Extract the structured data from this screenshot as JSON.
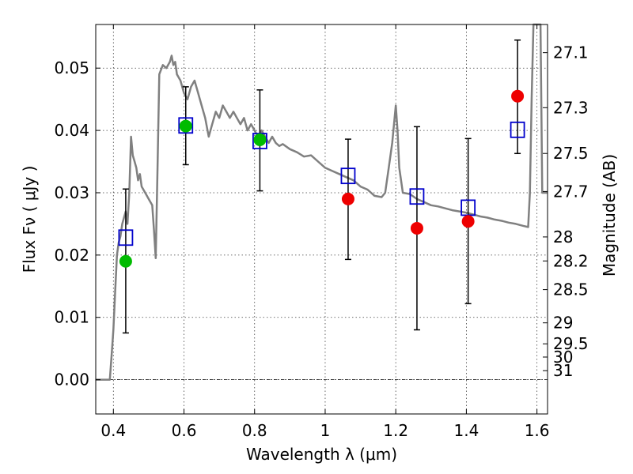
{
  "chart_data": {
    "type": "scatter",
    "title": "",
    "xlabel": "Wavelength  λ (μm)",
    "ylabel": "Flux  Fν  ( μJy )",
    "ylabel_right": "Magnitude (AB)",
    "xlim": [
      0.35,
      1.63
    ],
    "ylim": [
      -0.0055,
      0.057
    ],
    "grid": true,
    "xticks": [
      {
        "value": 0.4,
        "label": "0.4"
      },
      {
        "value": 0.6,
        "label": "0.6"
      },
      {
        "value": 0.8,
        "label": "0.8"
      },
      {
        "value": 1.0,
        "label": "1"
      },
      {
        "value": 1.2,
        "label": "1.2"
      },
      {
        "value": 1.4,
        "label": "1.4"
      },
      {
        "value": 1.6,
        "label": "1.6"
      }
    ],
    "yticks": [
      {
        "value": 0.0,
        "label": "0.00"
      },
      {
        "value": 0.01,
        "label": "0.01"
      },
      {
        "value": 0.02,
        "label": "0.02"
      },
      {
        "value": 0.03,
        "label": "0.03"
      },
      {
        "value": 0.04,
        "label": "0.04"
      },
      {
        "value": 0.05,
        "label": "0.05"
      }
    ],
    "right_ticks": [
      {
        "mag": 27.1,
        "label": "27.1"
      },
      {
        "mag": 27.3,
        "label": "27.3"
      },
      {
        "mag": 27.5,
        "label": "27.5"
      },
      {
        "mag": 27.7,
        "label": "27.7"
      },
      {
        "mag": 28.0,
        "label": "28"
      },
      {
        "mag": 28.2,
        "label": "28.2"
      },
      {
        "mag": 28.5,
        "label": "28.5"
      },
      {
        "mag": 29.0,
        "label": "29"
      },
      {
        "mag": 29.5,
        "label": "29.5"
      },
      {
        "mag": 30.0,
        "label": "30"
      },
      {
        "mag": 31.0,
        "label": "31"
      }
    ],
    "model_spectrum": {
      "color": "#808080",
      "points": [
        [
          0.35,
          0.0
        ],
        [
          0.39,
          0.0
        ],
        [
          0.395,
          0.004
        ],
        [
          0.4,
          0.008
        ],
        [
          0.405,
          0.014
        ],
        [
          0.41,
          0.02
        ],
        [
          0.415,
          0.022
        ],
        [
          0.42,
          0.023
        ],
        [
          0.425,
          0.025
        ],
        [
          0.43,
          0.026
        ],
        [
          0.435,
          0.027
        ],
        [
          0.44,
          0.025
        ],
        [
          0.445,
          0.03
        ],
        [
          0.45,
          0.039
        ],
        [
          0.455,
          0.036
        ],
        [
          0.46,
          0.035
        ],
        [
          0.465,
          0.034
        ],
        [
          0.47,
          0.032
        ],
        [
          0.475,
          0.033
        ],
        [
          0.48,
          0.031
        ],
        [
          0.49,
          0.03
        ],
        [
          0.5,
          0.029
        ],
        [
          0.51,
          0.028
        ],
        [
          0.515,
          0.024
        ],
        [
          0.52,
          0.0195
        ],
        [
          0.525,
          0.034
        ],
        [
          0.53,
          0.049
        ],
        [
          0.54,
          0.0505
        ],
        [
          0.55,
          0.05
        ],
        [
          0.56,
          0.051
        ],
        [
          0.565,
          0.052
        ],
        [
          0.57,
          0.0505
        ],
        [
          0.575,
          0.051
        ],
        [
          0.58,
          0.049
        ],
        [
          0.59,
          0.048
        ],
        [
          0.6,
          0.046
        ],
        [
          0.61,
          0.045
        ],
        [
          0.62,
          0.047
        ],
        [
          0.63,
          0.048
        ],
        [
          0.64,
          0.046
        ],
        [
          0.65,
          0.044
        ],
        [
          0.66,
          0.042
        ],
        [
          0.67,
          0.039
        ],
        [
          0.68,
          0.041
        ],
        [
          0.69,
          0.043
        ],
        [
          0.7,
          0.042
        ],
        [
          0.71,
          0.044
        ],
        [
          0.72,
          0.043
        ],
        [
          0.73,
          0.042
        ],
        [
          0.74,
          0.043
        ],
        [
          0.75,
          0.042
        ],
        [
          0.76,
          0.041
        ],
        [
          0.77,
          0.042
        ],
        [
          0.78,
          0.04
        ],
        [
          0.79,
          0.041
        ],
        [
          0.8,
          0.04
        ],
        [
          0.81,
          0.039
        ],
        [
          0.82,
          0.04
        ],
        [
          0.83,
          0.039
        ],
        [
          0.84,
          0.038
        ],
        [
          0.85,
          0.039
        ],
        [
          0.86,
          0.038
        ],
        [
          0.87,
          0.0375
        ],
        [
          0.88,
          0.0378
        ],
        [
          0.9,
          0.037
        ],
        [
          0.92,
          0.0365
        ],
        [
          0.94,
          0.0358
        ],
        [
          0.96,
          0.036
        ],
        [
          0.98,
          0.035
        ],
        [
          1.0,
          0.034
        ],
        [
          1.02,
          0.0335
        ],
        [
          1.04,
          0.033
        ],
        [
          1.06,
          0.0325
        ],
        [
          1.08,
          0.032
        ],
        [
          1.1,
          0.031
        ],
        [
          1.12,
          0.0305
        ],
        [
          1.14,
          0.0295
        ],
        [
          1.16,
          0.0293
        ],
        [
          1.17,
          0.03
        ],
        [
          1.18,
          0.034
        ],
        [
          1.19,
          0.038
        ],
        [
          1.2,
          0.044
        ],
        [
          1.205,
          0.04
        ],
        [
          1.21,
          0.034
        ],
        [
          1.22,
          0.03
        ],
        [
          1.24,
          0.0298
        ],
        [
          1.26,
          0.029
        ],
        [
          1.28,
          0.0285
        ],
        [
          1.3,
          0.028
        ],
        [
          1.32,
          0.0278
        ],
        [
          1.34,
          0.0275
        ],
        [
          1.36,
          0.0272
        ],
        [
          1.38,
          0.027
        ],
        [
          1.4,
          0.0268
        ],
        [
          1.42,
          0.0265
        ],
        [
          1.44,
          0.0262
        ],
        [
          1.46,
          0.026
        ],
        [
          1.48,
          0.0257
        ],
        [
          1.5,
          0.0255
        ],
        [
          1.52,
          0.0252
        ],
        [
          1.54,
          0.025
        ],
        [
          1.56,
          0.0247
        ],
        [
          1.575,
          0.0245
        ],
        [
          1.58,
          0.03
        ],
        [
          1.585,
          0.045
        ],
        [
          1.59,
          0.062
        ],
        [
          1.6,
          0.062
        ],
        [
          1.61,
          0.062
        ],
        [
          1.615,
          0.03
        ],
        [
          1.62,
          0.03
        ],
        [
          1.63,
          0.03
        ]
      ]
    },
    "series": [
      {
        "name": "",
        "marker": "open-square",
        "color": "#0000cc",
        "points": [
          {
            "x": 0.435,
            "y": 0.0228
          },
          {
            "x": 0.605,
            "y": 0.0408
          },
          {
            "x": 0.815,
            "y": 0.0383
          },
          {
            "x": 1.065,
            "y": 0.0327
          },
          {
            "x": 1.26,
            "y": 0.0294
          },
          {
            "x": 1.405,
            "y": 0.0276
          },
          {
            "x": 1.545,
            "y": 0.0401
          }
        ]
      },
      {
        "name": "",
        "marker": "circle",
        "color": "#00bb00",
        "points": [
          {
            "x": 0.435,
            "y": 0.019,
            "yerr_low": 0.0075,
            "yerr_high": 0.0306
          },
          {
            "x": 0.605,
            "y": 0.0407,
            "yerr_low": 0.0345,
            "yerr_high": 0.047
          },
          {
            "x": 0.815,
            "y": 0.0385,
            "yerr_low": 0.0303,
            "yerr_high": 0.0465
          }
        ]
      },
      {
        "name": "",
        "marker": "circle",
        "color": "#ee0000",
        "points": [
          {
            "x": 1.065,
            "y": 0.029,
            "yerr_low": 0.0193,
            "yerr_high": 0.0386
          },
          {
            "x": 1.26,
            "y": 0.0243,
            "yerr_low": 0.008,
            "yerr_high": 0.0406
          },
          {
            "x": 1.405,
            "y": 0.0254,
            "yerr_low": 0.0122,
            "yerr_high": 0.0387
          },
          {
            "x": 1.545,
            "y": 0.0455,
            "yerr_low": 0.0363,
            "yerr_high": 0.0545
          }
        ]
      }
    ]
  }
}
